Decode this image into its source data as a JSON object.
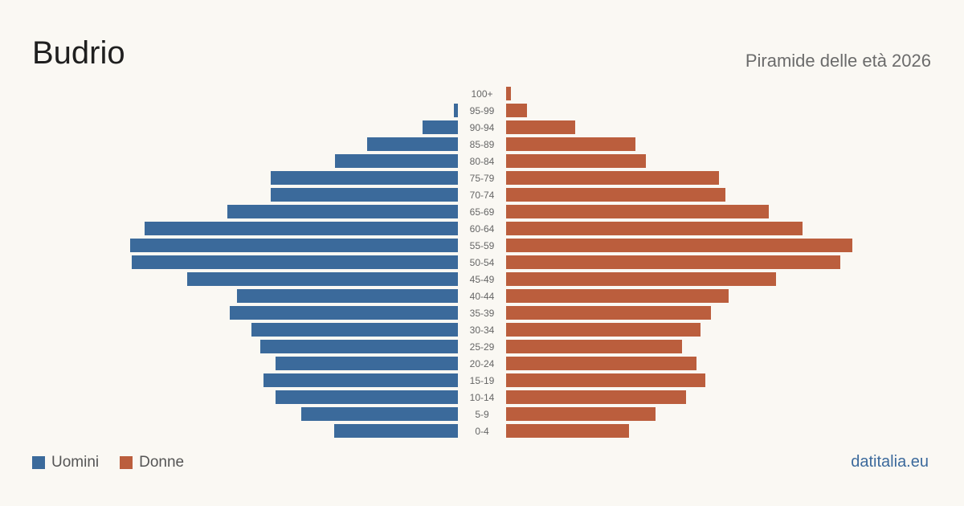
{
  "header": {
    "title": "Budrio",
    "subtitle": "Piramide delle età 2026"
  },
  "legend": [
    {
      "label": "Uomini",
      "color": "#3b6a9b"
    },
    {
      "label": "Donne",
      "color": "#bb5e3d"
    }
  ],
  "brand": "datitalia.eu",
  "chart_data": {
    "type": "bar",
    "orientation": "horizontal-pyramid",
    "categories": [
      "100+",
      "95-99",
      "90-94",
      "85-89",
      "80-84",
      "75-79",
      "70-74",
      "65-69",
      "60-64",
      "55-59",
      "50-54",
      "45-49",
      "40-44",
      "35-39",
      "30-34",
      "25-29",
      "20-24",
      "15-19",
      "10-14",
      "5-9",
      "0-4"
    ],
    "series": [
      {
        "name": "Uomini",
        "color": "#3b6a9b",
        "values": [
          0,
          5,
          44,
          113,
          153,
          233,
          233,
          287,
          390,
          408,
          406,
          337,
          275,
          284,
          257,
          246,
          227,
          242,
          227,
          195,
          154
        ]
      },
      {
        "name": "Donne",
        "color": "#bb5e3d",
        "values": [
          6,
          26,
          86,
          161,
          174,
          265,
          273,
          327,
          369,
          431,
          416,
          336,
          277,
          255,
          242,
          219,
          237,
          248,
          224,
          186,
          153
        ]
      }
    ],
    "grid": false,
    "legend_position": "bottom-left"
  }
}
